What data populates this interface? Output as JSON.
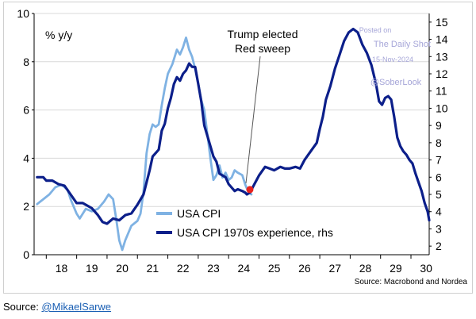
{
  "chart_data": {
    "type": "line",
    "ylabel_left": "% y/y",
    "y_left": {
      "lim": [
        0,
        10
      ],
      "ticks": [
        0,
        2,
        4,
        6,
        8,
        10
      ]
    },
    "y_right": {
      "lim": [
        1.5,
        15.5
      ],
      "ticks": [
        2,
        3,
        4,
        5,
        6,
        7,
        8,
        9,
        10,
        11,
        12,
        13,
        14,
        15
      ]
    },
    "x": {
      "lim": [
        17.6,
        30.6
      ],
      "ticks": [
        "18",
        "19",
        "20",
        "21",
        "22",
        "23",
        "24",
        "25",
        "26",
        "27",
        "28",
        "29",
        "30"
      ],
      "tick_values": [
        18,
        19,
        20,
        21,
        22,
        23,
        24,
        25,
        26,
        27,
        28,
        29,
        30
      ]
    },
    "series": [
      {
        "name": "USA CPI",
        "axis": "left",
        "color": "#7fb2e3",
        "points": [
          [
            17.7,
            2.1
          ],
          [
            17.9,
            2.3
          ],
          [
            18.1,
            2.5
          ],
          [
            18.3,
            2.8
          ],
          [
            18.5,
            2.9
          ],
          [
            18.7,
            2.7
          ],
          [
            18.8,
            2.3
          ],
          [
            19.0,
            1.7
          ],
          [
            19.1,
            1.5
          ],
          [
            19.3,
            1.9
          ],
          [
            19.5,
            1.8
          ],
          [
            19.7,
            1.9
          ],
          [
            19.9,
            2.2
          ],
          [
            20.05,
            2.5
          ],
          [
            20.2,
            2.3
          ],
          [
            20.3,
            1.5
          ],
          [
            20.4,
            0.6
          ],
          [
            20.5,
            0.2
          ],
          [
            20.6,
            0.6
          ],
          [
            20.8,
            1.2
          ],
          [
            21.0,
            1.4
          ],
          [
            21.1,
            1.7
          ],
          [
            21.2,
            2.6
          ],
          [
            21.3,
            4.2
          ],
          [
            21.4,
            5.0
          ],
          [
            21.5,
            5.4
          ],
          [
            21.6,
            5.3
          ],
          [
            21.7,
            5.4
          ],
          [
            21.8,
            6.2
          ],
          [
            21.9,
            6.9
          ],
          [
            22.0,
            7.5
          ],
          [
            22.15,
            7.9
          ],
          [
            22.3,
            8.5
          ],
          [
            22.4,
            8.3
          ],
          [
            22.5,
            8.6
          ],
          [
            22.6,
            9.0
          ],
          [
            22.7,
            8.5
          ],
          [
            22.8,
            8.2
          ],
          [
            22.9,
            7.7
          ],
          [
            23.0,
            7.1
          ],
          [
            23.1,
            6.4
          ],
          [
            23.2,
            6.0
          ],
          [
            23.3,
            5.0
          ],
          [
            23.4,
            4.0
          ],
          [
            23.5,
            3.1
          ],
          [
            23.6,
            3.3
          ],
          [
            23.7,
            3.7
          ],
          [
            23.8,
            3.2
          ],
          [
            23.9,
            3.4
          ],
          [
            24.0,
            3.1
          ],
          [
            24.1,
            3.2
          ],
          [
            24.2,
            3.5
          ],
          [
            24.3,
            3.4
          ],
          [
            24.45,
            3.3
          ],
          [
            24.55,
            2.9
          ],
          [
            24.65,
            2.6
          ],
          [
            24.75,
            2.5
          ]
        ]
      },
      {
        "name": "USA CPI 1970s experience, rhs",
        "axis": "right",
        "color": "#0c1f8a",
        "points": [
          [
            17.7,
            6.0
          ],
          [
            17.9,
            6.0
          ],
          [
            18.0,
            5.8
          ],
          [
            18.2,
            5.8
          ],
          [
            18.4,
            5.6
          ],
          [
            18.6,
            5.5
          ],
          [
            18.8,
            5.0
          ],
          [
            19.0,
            4.5
          ],
          [
            19.2,
            4.5
          ],
          [
            19.5,
            4.2
          ],
          [
            19.7,
            3.8
          ],
          [
            19.85,
            3.4
          ],
          [
            20.0,
            3.3
          ],
          [
            20.2,
            3.6
          ],
          [
            20.4,
            3.5
          ],
          [
            20.6,
            3.8
          ],
          [
            20.8,
            3.9
          ],
          [
            21.0,
            4.4
          ],
          [
            21.2,
            5.0
          ],
          [
            21.4,
            6.4
          ],
          [
            21.5,
            7.2
          ],
          [
            21.6,
            7.4
          ],
          [
            21.7,
            7.6
          ],
          [
            21.8,
            8.7
          ],
          [
            21.9,
            9.1
          ],
          [
            22.0,
            10.0
          ],
          [
            22.1,
            10.6
          ],
          [
            22.2,
            11.4
          ],
          [
            22.3,
            11.8
          ],
          [
            22.4,
            11.6
          ],
          [
            22.5,
            12.0
          ],
          [
            22.6,
            12.2
          ],
          [
            22.7,
            12.6
          ],
          [
            22.8,
            12.4
          ],
          [
            22.9,
            12.4
          ],
          [
            23.0,
            11.4
          ],
          [
            23.1,
            10.4
          ],
          [
            23.2,
            9.0
          ],
          [
            23.3,
            8.4
          ],
          [
            23.4,
            7.8
          ],
          [
            23.5,
            7.2
          ],
          [
            23.6,
            6.9
          ],
          [
            23.7,
            6.2
          ],
          [
            23.8,
            6.1
          ],
          [
            23.9,
            6.0
          ],
          [
            24.0,
            5.6
          ],
          [
            24.2,
            5.2
          ],
          [
            24.3,
            5.3
          ],
          [
            24.45,
            5.2
          ],
          [
            24.55,
            5.1
          ],
          [
            24.6,
            5.0
          ],
          [
            24.7,
            5.1
          ],
          [
            24.85,
            5.6
          ],
          [
            25.0,
            6.1
          ],
          [
            25.2,
            6.6
          ],
          [
            25.35,
            6.5
          ],
          [
            25.5,
            6.4
          ],
          [
            25.7,
            6.6
          ],
          [
            25.85,
            6.5
          ],
          [
            26.0,
            6.5
          ],
          [
            26.2,
            6.6
          ],
          [
            26.35,
            6.5
          ],
          [
            26.5,
            7.0
          ],
          [
            26.7,
            7.5
          ],
          [
            26.9,
            8.0
          ],
          [
            27.0,
            8.8
          ],
          [
            27.1,
            9.5
          ],
          [
            27.2,
            10.5
          ],
          [
            27.35,
            11.3
          ],
          [
            27.5,
            12.3
          ],
          [
            27.65,
            13.1
          ],
          [
            27.8,
            13.9
          ],
          [
            27.95,
            14.4
          ],
          [
            28.1,
            14.6
          ],
          [
            28.25,
            14.4
          ],
          [
            28.4,
            13.7
          ],
          [
            28.55,
            13.2
          ],
          [
            28.7,
            12.5
          ],
          [
            28.85,
            11.4
          ],
          [
            28.95,
            10.4
          ],
          [
            29.05,
            10.2
          ],
          [
            29.15,
            10.6
          ],
          [
            29.25,
            10.7
          ],
          [
            29.35,
            10.5
          ],
          [
            29.45,
            9.5
          ],
          [
            29.55,
            8.3
          ],
          [
            29.65,
            7.8
          ],
          [
            29.75,
            7.5
          ],
          [
            29.85,
            7.3
          ],
          [
            29.95,
            7.0
          ],
          [
            30.05,
            6.8
          ],
          [
            30.15,
            6.2
          ],
          [
            30.25,
            5.7
          ],
          [
            30.35,
            5.2
          ],
          [
            30.45,
            4.5
          ],
          [
            30.55,
            4.0
          ],
          [
            30.6,
            3.5
          ]
        ]
      }
    ],
    "marker": {
      "x": 24.7,
      "y_left": 2.7,
      "color": "#e8231f"
    },
    "annotations": {
      "event_line1": "Trump elected",
      "event_line2": "Red sweep"
    },
    "legend": {
      "position": "bottom-left",
      "labels": [
        "USA CPI",
        "USA CPI 1970s experience, rhs"
      ]
    },
    "source_note": "Source: Macrobond and Nordea",
    "watermark": {
      "line1": "Posted on",
      "line2": "The Daily Shot",
      "line3": "15-Nov-2024",
      "line4": "@SoberLook"
    }
  },
  "footer": {
    "prefix": "Source: ",
    "link": "@MikaelSarwe"
  }
}
